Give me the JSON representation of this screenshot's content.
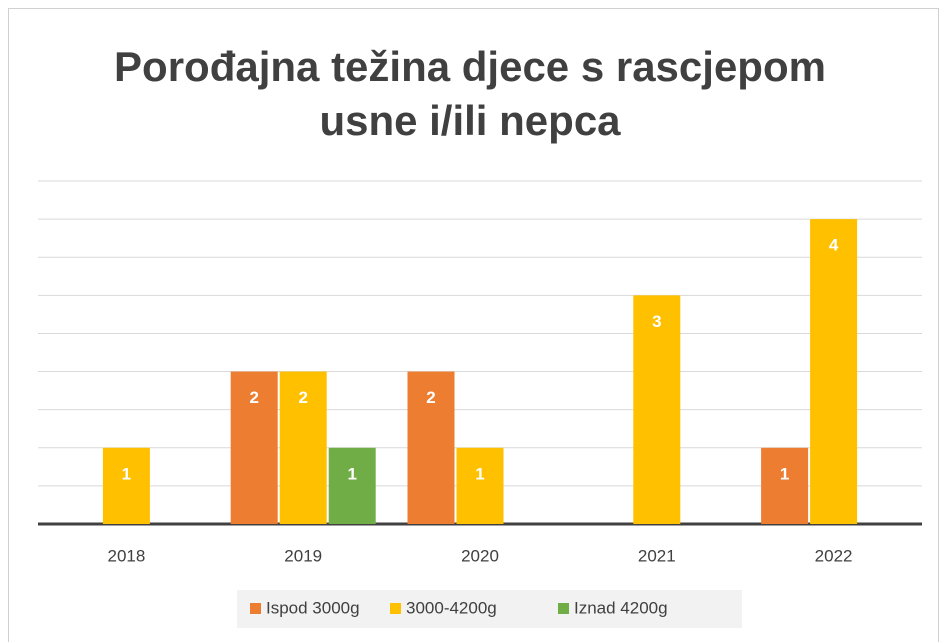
{
  "chart_data": {
    "type": "bar",
    "title": "Porođajna težina djece s rascjepom usne i/ili nepca",
    "categories": [
      "2018",
      "2019",
      "2020",
      "2021",
      "2022"
    ],
    "series": [
      {
        "name": "Ispod 3000g",
        "color": "#ED7D31",
        "values": [
          null,
          2,
          2,
          null,
          1
        ]
      },
      {
        "name": "3000-4200g",
        "color": "#FFC000",
        "values": [
          1,
          2,
          1,
          3,
          4
        ]
      },
      {
        "name": "Iznad 4200g",
        "color": "#70AD47",
        "values": [
          null,
          1,
          null,
          null,
          null
        ]
      }
    ],
    "ylim": [
      0,
      4.5
    ],
    "yticks": [
      0,
      0.5,
      1,
      1.5,
      2,
      2.5,
      3,
      3.5,
      4,
      4.5
    ],
    "grid": true,
    "legend": "bottom"
  }
}
